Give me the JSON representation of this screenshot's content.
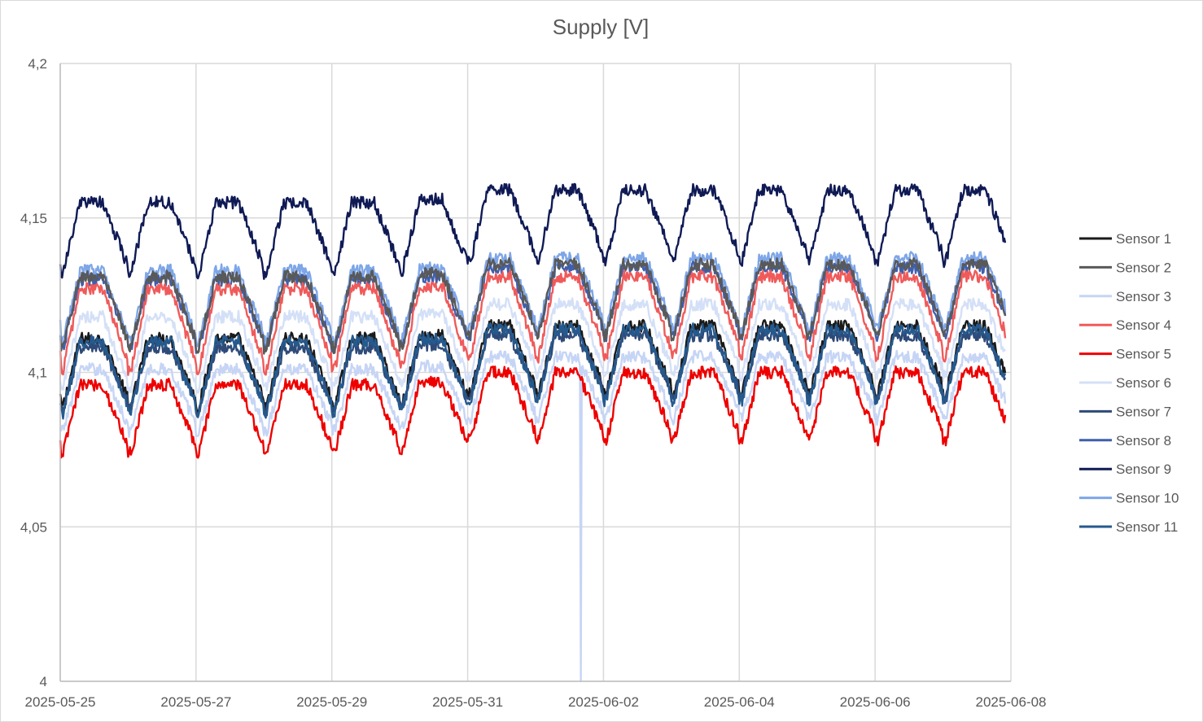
{
  "chart_data": {
    "type": "line",
    "title": "Supply [V]",
    "xlabel": "",
    "ylabel": "",
    "x_range": [
      "2025-05-25",
      "2025-06-08"
    ],
    "x_ticks": [
      "2025-05-25",
      "2025-05-27",
      "2025-05-29",
      "2025-05-31",
      "2025-06-02",
      "2025-06-04",
      "2025-06-06",
      "2025-06-08"
    ],
    "y_ticks": [
      "4",
      "4,05",
      "4,1",
      "4,15",
      "4,2"
    ],
    "ylim": [
      4.0,
      4.2
    ],
    "grid": true,
    "legend_position": "right",
    "series": [
      {
        "name": "Sensor 1",
        "color": "#1a1a1a",
        "low": 4.089,
        "high": 4.111,
        "start": 4.093
      },
      {
        "name": "Sensor 2",
        "color": "#595959",
        "low": 4.108,
        "high": 4.131,
        "start": 4.112
      },
      {
        "name": "Sensor 3",
        "color": "#c6d5f5",
        "low": 4.081,
        "high": 4.101,
        "start": 4.082,
        "spike": {
          "x": "2025-06-01 16:00",
          "y": 4.0
        }
      },
      {
        "name": "Sensor 4",
        "color": "#f05a5a",
        "low": 4.101,
        "high": 4.127,
        "start": 4.107
      },
      {
        "name": "Sensor 5",
        "color": "#ee0000",
        "low": 4.074,
        "high": 4.096,
        "start": 4.078
      },
      {
        "name": "Sensor 6",
        "color": "#d4e0f7",
        "low": 4.095,
        "high": 4.118,
        "start": 4.097
      },
      {
        "name": "Sensor 7",
        "color": "#2e4a78",
        "low": 4.088,
        "high": 4.108,
        "start": 4.09
      },
      {
        "name": "Sensor 8",
        "color": "#3f5fae",
        "low": 4.108,
        "high": 4.13,
        "start": 4.111
      },
      {
        "name": "Sensor 9",
        "color": "#0f1a55",
        "low": 4.132,
        "high": 4.155,
        "start": 4.135
      },
      {
        "name": "Sensor 10",
        "color": "#7ea6e8",
        "low": 4.11,
        "high": 4.133,
        "start": 4.117
      },
      {
        "name": "Sensor 11",
        "color": "#255a8e",
        "low": 4.087,
        "high": 4.11,
        "start": 4.088
      }
    ]
  }
}
